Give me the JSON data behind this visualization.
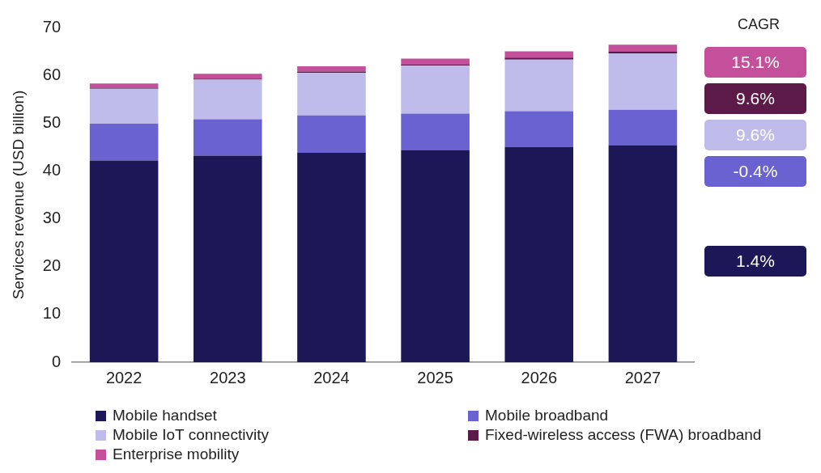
{
  "chart_data": {
    "type": "bar",
    "stacked": true,
    "ylabel": "Services revenue (USD billion)",
    "categories": [
      "2022",
      "2023",
      "2024",
      "2025",
      "2026",
      "2027"
    ],
    "series": [
      {
        "name": "Mobile handset",
        "color": "#1c1858",
        "values": [
          42.2,
          43.2,
          43.8,
          44.4,
          45.0,
          45.4
        ]
      },
      {
        "name": "Mobile broadband",
        "color": "#6a62d0",
        "values": [
          7.7,
          7.6,
          7.8,
          7.6,
          7.5,
          7.4
        ]
      },
      {
        "name": "Mobile IoT connectivity",
        "color": "#bfbcec",
        "values": [
          7.3,
          8.3,
          8.9,
          10.0,
          10.8,
          11.8
        ]
      },
      {
        "name": "Fixed-wireless access (FWA) broadband",
        "color": "#5c1a48",
        "values": [
          0.2,
          0.2,
          0.3,
          0.3,
          0.4,
          0.4
        ]
      },
      {
        "name": "Enterprise mobility",
        "color": "#c4509c",
        "values": [
          0.9,
          1.0,
          1.1,
          1.2,
          1.3,
          1.4
        ]
      }
    ],
    "ylim": [
      0,
      70
    ],
    "yticks": [
      0,
      10,
      20,
      30,
      40,
      50,
      60,
      70
    ],
    "grid": false,
    "legend": "bottom",
    "annotations": [
      "CAGR",
      "15.1%",
      "9.6%",
      "9.6%",
      "-0.4%",
      "1.4%"
    ]
  }
}
